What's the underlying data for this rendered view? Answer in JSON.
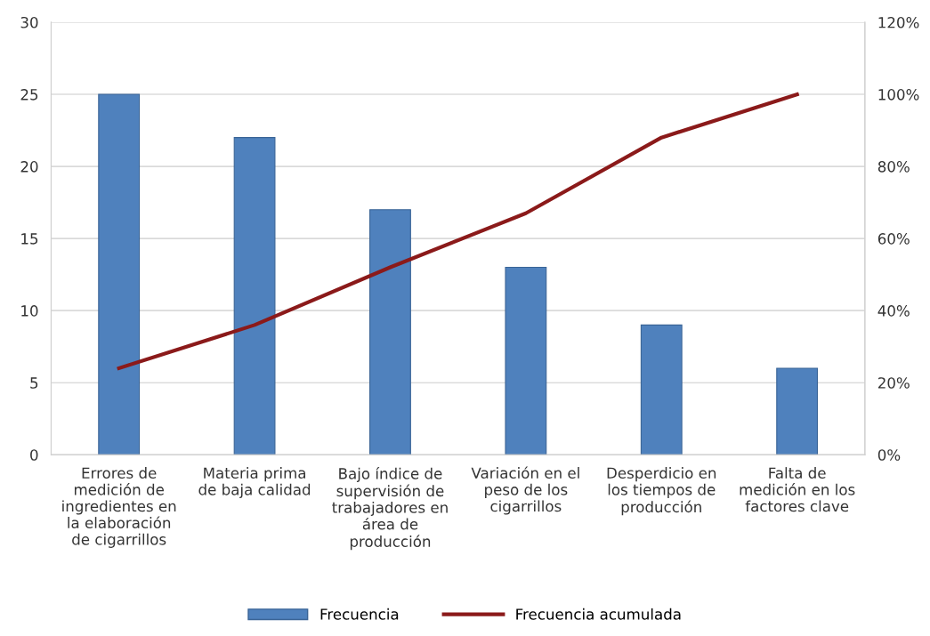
{
  "chart_data": {
    "type": "bar",
    "categories": [
      "Errores de\nmedición de\ningredientes en\nla elaboración\nde cigarrillos",
      "Materia prima\nde baja calidad",
      "Bajo índice de\nsupervisión de\ntrabajadores en\nárea de\nproducción",
      "Variación en el\npeso de los\ncigarrillos",
      "Desperdicio en\nlos tiempos de\nproducción",
      "Falta de\nmedición en los\nfactores clave"
    ],
    "series": [
      {
        "name": "Frecuencia",
        "color": "#4f81bd",
        "values": [
          25,
          22,
          17,
          13,
          9,
          6
        ]
      },
      {
        "name": "Frecuencia acumulada",
        "type": "line",
        "axis": "y2",
        "color": "#8b1a1a",
        "values": [
          24,
          36,
          52,
          67,
          88,
          100
        ]
      }
    ],
    "ylim": [
      0,
      30
    ],
    "yticks": [
      0,
      5,
      10,
      15,
      20,
      25,
      30
    ],
    "y2lim": [
      0,
      120
    ],
    "y2ticks": [
      {
        "value": 0,
        "label": "0%"
      },
      {
        "value": 20,
        "label": "20%"
      },
      {
        "value": 40,
        "label": "40%"
      },
      {
        "value": 60,
        "label": "60%"
      },
      {
        "value": 80,
        "label": "80%"
      },
      {
        "value": 100,
        "label": "100%"
      },
      {
        "value": 120,
        "label": "120%"
      }
    ],
    "grid": "y",
    "legend": "bottom",
    "marker": "none",
    "line_style": "solid"
  }
}
